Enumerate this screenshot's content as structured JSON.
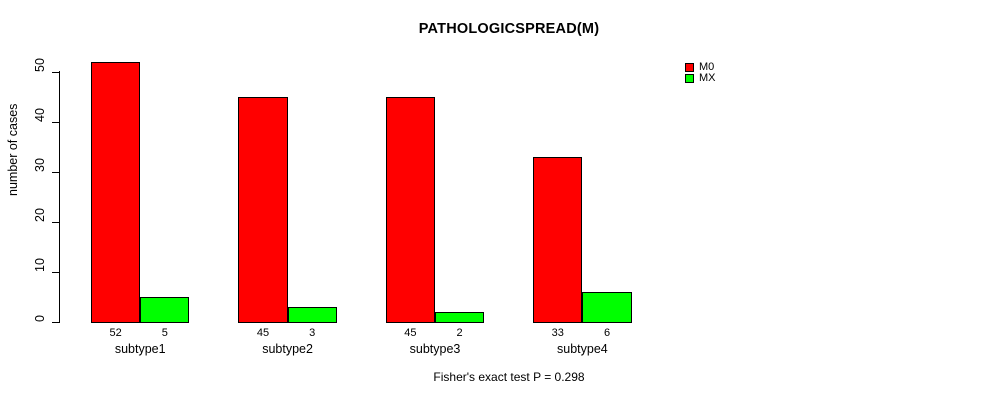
{
  "title": "PATHOLOGICSPREAD(M)",
  "footer": {
    "note": "Fisher's exact test P = 0.298"
  },
  "colors": {
    "background": "#ffffff",
    "axis": "#000000",
    "text": "#000000",
    "series_m0": "#ff0000",
    "series_mx": "#00ff00"
  },
  "legend": {
    "entries": [
      {
        "label": "M0",
        "color": "#ff0000",
        "swatch": "legend-swatch-m0"
      },
      {
        "label": "MX",
        "color": "#00ff00",
        "swatch": "legend-swatch-mx"
      }
    ],
    "position": "top-right"
  },
  "chart_data": {
    "type": "bar",
    "grouped": true,
    "categories": [
      "subtype1",
      "subtype2",
      "subtype3",
      "subtype4"
    ],
    "series": [
      {
        "name": "M0",
        "color": "#ff0000",
        "values": [
          52,
          45,
          45,
          33
        ]
      },
      {
        "name": "MX",
        "color": "#00ff00",
        "values": [
          5,
          3,
          2,
          6
        ]
      }
    ],
    "title": "PATHOLOGICSPREAD(M)",
    "xlabel": "",
    "ylabel": "number of cases",
    "ylim": [
      0,
      50
    ],
    "yticks": [
      0,
      10,
      20,
      30,
      40,
      50
    ],
    "grid": false,
    "legend_position": "top-right",
    "bar_value_labels": true,
    "annotation": "Fisher's exact test P = 0.298"
  }
}
